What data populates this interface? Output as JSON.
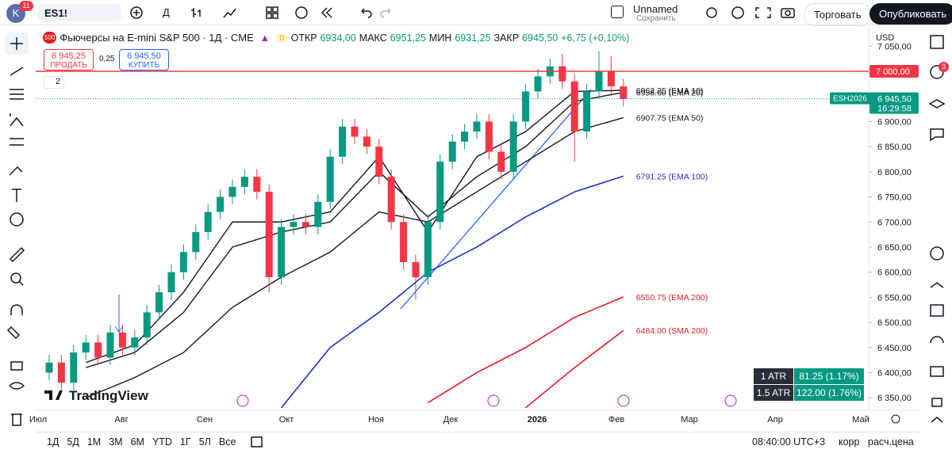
{
  "top_bar": {
    "avatar": "K",
    "avatar_badge": "11",
    "symbol": "ES1!",
    "interval": "Д",
    "layout_name": "Unnamed",
    "save": "Сохранить",
    "trade": "Торговать",
    "publish": "Опубликовать"
  },
  "legend": {
    "icon": "500",
    "title": "Фьючерсы на E-mini S&P 500 · 1Д · CME",
    "badge": "D",
    "open_label": "ОТКР",
    "open": "6934,00",
    "high_label": "МАКС",
    "high": "6951,25",
    "low_label": "МИН",
    "low": "6931,25",
    "close_label": "ЗАКР",
    "close": "6945,50",
    "change": "+6,75 (+0,10%)",
    "sell_price": "6 945,25",
    "sell": "ПРОДАТЬ",
    "spread": "0,25",
    "buy_price": "6 945,50",
    "buy": "КУПИТЬ",
    "collapsed_count": "2"
  },
  "chart_data": {
    "type": "candlestick",
    "currency": "USD",
    "ylim": [
      6325,
      7090
    ],
    "yticks": [
      {
        "value": 7050,
        "label": "7 050,00"
      },
      {
        "value": 6900,
        "label": "6 900,00"
      },
      {
        "value": 6850,
        "label": "6 850,00"
      },
      {
        "value": 6800,
        "label": "6 800,00"
      },
      {
        "value": 6750,
        "label": "6 750,00"
      },
      {
        "value": 6700,
        "label": "6 700,00"
      },
      {
        "value": 6650,
        "label": "6 650,00"
      },
      {
        "value": 6600,
        "label": "6 600,00"
      },
      {
        "value": 6550,
        "label": "6 550,00"
      },
      {
        "value": 6500,
        "label": "6 500,00"
      },
      {
        "value": 6450,
        "label": "6 450,00"
      },
      {
        "value": 6400,
        "label": "6 400,00"
      },
      {
        "value": 6350,
        "label": "6 350,00"
      }
    ],
    "x_labels": [
      "Июл",
      "Авг",
      "Сен",
      "Окт",
      "Ноя",
      "Дек",
      "2026",
      "Фев",
      "Мар",
      "Апр",
      "Май"
    ],
    "open": [
      6400,
      6420,
      6380,
      6440,
      6460,
      6430,
      6480,
      6450,
      6470,
      6520,
      6560,
      6600,
      6640,
      6680,
      6720,
      6750,
      6770,
      6790,
      6760,
      6590,
      6690,
      6700,
      6690,
      6740,
      6830,
      6890,
      6870,
      6850,
      6790,
      6700,
      6620,
      6590,
      6700,
      6820,
      6860,
      6880,
      6900,
      6840,
      6800,
      6900,
      6960,
      6990,
      7010,
      6980,
      6880,
      6960,
      7000,
      6970
    ],
    "high": [
      6435,
      6435,
      6455,
      6475,
      6475,
      6495,
      6495,
      6485,
      6535,
      6575,
      6615,
      6655,
      6695,
      6735,
      6765,
      6785,
      6805,
      6805,
      6775,
      6705,
      6715,
      6715,
      6755,
      6845,
      6905,
      6905,
      6885,
      6865,
      6805,
      6715,
      6635,
      6715,
      6835,
      6875,
      6895,
      6915,
      6915,
      6855,
      6915,
      6975,
      7005,
      7025,
      7035,
      6995,
      6975,
      7040,
      7030,
      6985
    ],
    "low": [
      6385,
      6365,
      6365,
      6425,
      6415,
      6415,
      6435,
      6435,
      6455,
      6505,
      6545,
      6585,
      6625,
      6665,
      6705,
      6735,
      6755,
      6745,
      6560,
      6575,
      6675,
      6675,
      6675,
      6725,
      6815,
      6855,
      6835,
      6775,
      6685,
      6605,
      6545,
      6575,
      6685,
      6805,
      6845,
      6865,
      6825,
      6785,
      6785,
      6885,
      6945,
      6975,
      6965,
      6820,
      6865,
      6945,
      6955,
      6930
    ],
    "close": [
      6420,
      6380,
      6440,
      6460,
      6430,
      6480,
      6450,
      6470,
      6520,
      6560,
      6600,
      6640,
      6680,
      6720,
      6750,
      6770,
      6790,
      6760,
      6590,
      6690,
      6700,
      6690,
      6740,
      6830,
      6890,
      6870,
      6850,
      6790,
      6700,
      6620,
      6590,
      6700,
      6820,
      6860,
      6880,
      6900,
      6840,
      6800,
      6900,
      6960,
      6990,
      7010,
      6980,
      6880,
      6960,
      7000,
      6970,
      6945
    ],
    "up_color": "#089981",
    "down_color": "#f23645",
    "ma_x": [
      3,
      7,
      11,
      15,
      19,
      23,
      27,
      31,
      35,
      39,
      43,
      47
    ],
    "ma_series": [
      {
        "label": "6962.25 (EMA 10)",
        "color": "#131722",
        "values": [
          6420,
          6455,
          6560,
          6700,
          6700,
          6720,
          6830,
          6680,
          6830,
          6880,
          6960,
          6962.25
        ]
      },
      {
        "label": "6958.00 (EMA 20)",
        "color": "#131722",
        "values": [
          6410,
          6440,
          6520,
          6650,
          6680,
          6700,
          6800,
          6710,
          6790,
          6850,
          6940,
          6958
        ]
      },
      {
        "label": "6907.75 (EMA 50)",
        "color": "#131722",
        "values": [
          6350,
          6390,
          6440,
          6530,
          6590,
          6640,
          6720,
          6700,
          6760,
          6820,
          6880,
          6907.75
        ]
      },
      {
        "label": "6791.25 (EMA 100)",
        "color": "#1e2fc4",
        "values": [
          null,
          null,
          null,
          null,
          6330,
          6450,
          6520,
          6600,
          6650,
          6710,
          6760,
          6791.25
        ]
      },
      {
        "label": "6550.75 (EMA 200)",
        "color": "#e31c25",
        "values": [
          null,
          null,
          null,
          null,
          null,
          null,
          null,
          6340,
          6400,
          6450,
          6510,
          6550.75
        ]
      },
      {
        "label": "6484.00 (SMA 200)",
        "color": "#e31c25",
        "values": [
          null,
          null,
          null,
          null,
          null,
          null,
          null,
          null,
          null,
          6330,
          6410,
          6484
        ]
      }
    ],
    "hline": {
      "value": 7000,
      "label": "7 000,00",
      "color": "#f23645"
    },
    "last_price": {
      "value": 6945.5,
      "symbol": "ESH2026",
      "label": "6 945,50",
      "countdown": "16:29:58"
    },
    "atr": [
      {
        "name": "1 ATR",
        "value": "81.25 (1.17%)"
      },
      {
        "name": "1.5 ATR",
        "value": "122.00 (1.76%)"
      }
    ]
  },
  "bottom_bar": {
    "ranges": [
      "1Д",
      "5Д",
      "1М",
      "3М",
      "6М",
      "YTD",
      "1Г",
      "5Л",
      "Все"
    ],
    "time": "08:40:00 UTC+3",
    "adj": "корр",
    "settlement": "расч.цена"
  },
  "logo": "TradingView",
  "sidebar_badge": "3"
}
